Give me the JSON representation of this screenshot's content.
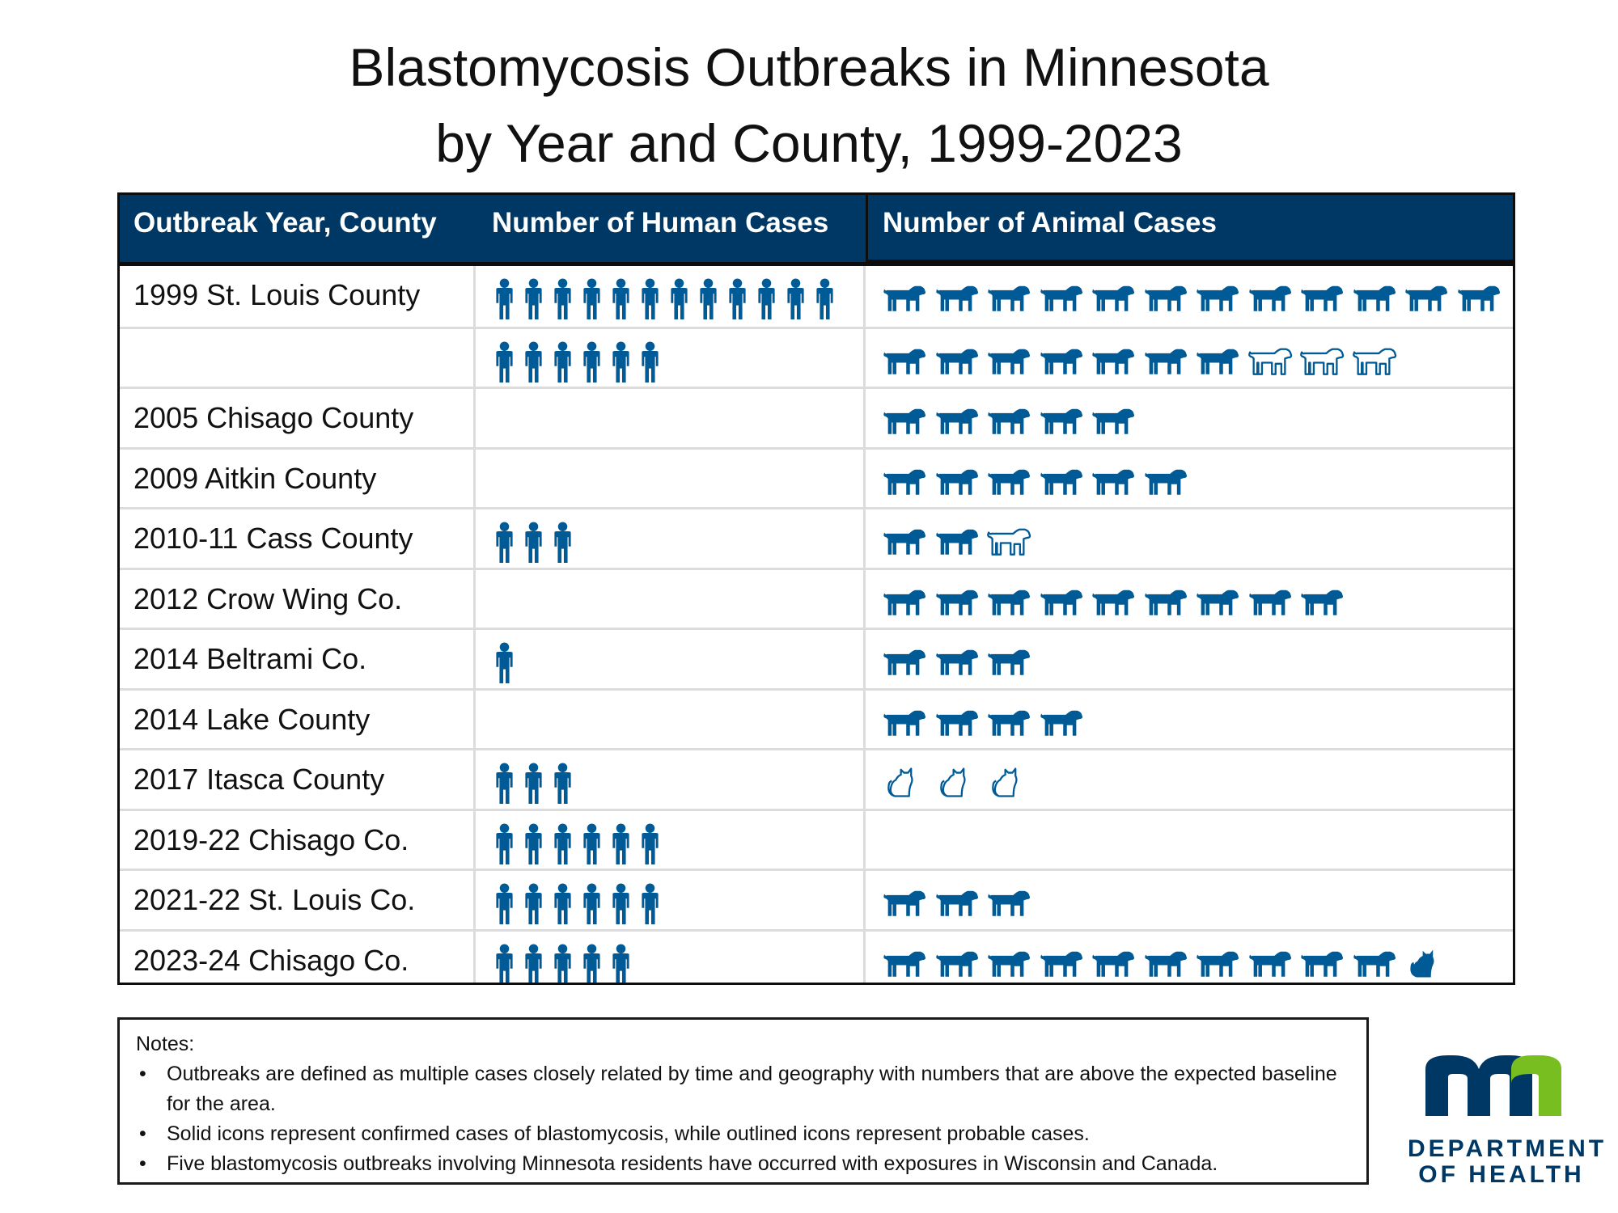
{
  "title_line1": "Blastomycosis Outbreaks in Minnesota",
  "title_line2": "by Year and County, 1999-2023",
  "columns": [
    "Outbreak Year, County",
    "Number of Human Cases",
    "Number of Animal Cases"
  ],
  "colors": {
    "header_bg": "#003865",
    "icon": "#005a95",
    "logo_navy": "#003865",
    "logo_green": "#78be21"
  },
  "icon_legend": {
    "person-icon": "human case",
    "dog-icon": "dog case",
    "cat-icon": "cat case"
  },
  "chart_data": {
    "type": "table",
    "title": "Blastomycosis Outbreaks in Minnesota by Year and County, 1999-2023",
    "rows": [
      {
        "label": "1999 St. Louis County",
        "humans": 12,
        "animals": [
          {
            "kind": "dog",
            "status": "confirmed",
            "count": 12
          }
        ]
      },
      {
        "label": "",
        "humans": 6,
        "animals": [
          {
            "kind": "dog",
            "status": "confirmed",
            "count": 7
          },
          {
            "kind": "dog",
            "status": "probable",
            "count": 3
          }
        ]
      },
      {
        "label": "2005 Chisago County",
        "humans": 0,
        "animals": [
          {
            "kind": "dog",
            "status": "confirmed",
            "count": 5
          }
        ]
      },
      {
        "label": "2009 Aitkin County",
        "humans": 0,
        "animals": [
          {
            "kind": "dog",
            "status": "confirmed",
            "count": 6
          }
        ]
      },
      {
        "label": "2010-11 Cass County",
        "humans": 3,
        "animals": [
          {
            "kind": "dog",
            "status": "confirmed",
            "count": 2
          },
          {
            "kind": "dog",
            "status": "probable",
            "count": 1
          }
        ]
      },
      {
        "label": "2012 Crow Wing Co.",
        "humans": 0,
        "animals": [
          {
            "kind": "dog",
            "status": "confirmed",
            "count": 9
          }
        ]
      },
      {
        "label": "2014 Beltrami Co.",
        "humans": 1,
        "animals": [
          {
            "kind": "dog",
            "status": "confirmed",
            "count": 3
          }
        ]
      },
      {
        "label": "2014 Lake County",
        "humans": 0,
        "animals": [
          {
            "kind": "dog",
            "status": "confirmed",
            "count": 4
          }
        ]
      },
      {
        "label": "2017 Itasca County",
        "humans": 3,
        "animals": [
          {
            "kind": "cat",
            "status": "probable",
            "count": 3
          }
        ]
      },
      {
        "label": "2019-22 Chisago Co.",
        "humans": 6,
        "animals": []
      },
      {
        "label": "2021-22 St. Louis Co.",
        "humans": 6,
        "animals": [
          {
            "kind": "dog",
            "status": "confirmed",
            "count": 3
          }
        ]
      },
      {
        "label": "2023-24 Chisago Co.",
        "humans": 5,
        "animals": [
          {
            "kind": "dog",
            "status": "confirmed",
            "count": 10
          },
          {
            "kind": "cat",
            "status": "confirmed",
            "count": 1
          }
        ]
      }
    ]
  },
  "notes": {
    "heading": "Notes:",
    "items": [
      "Outbreaks are defined as multiple cases closely related by time and geography with numbers that are above the expected baseline for the area.",
      "Solid icons represent confirmed cases of blastomycosis, while outlined icons represent probable cases.",
      "Five blastomycosis outbreaks involving Minnesota residents have occurred with exposures in Wisconsin and Canada."
    ]
  },
  "logo": {
    "line1": "DEPARTMENT",
    "line2": "OF HEALTH"
  }
}
